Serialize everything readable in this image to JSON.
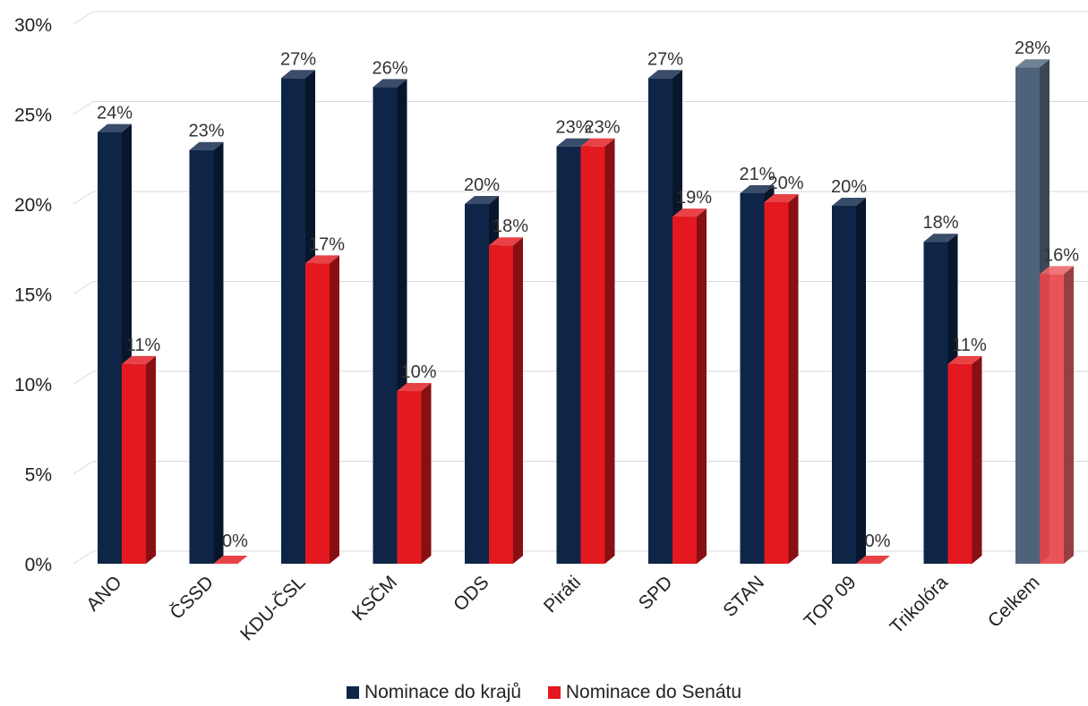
{
  "chart_data": {
    "type": "bar",
    "categories": [
      "ANO",
      "ČSSD",
      "KDU-ČSL",
      "KSČM",
      "ODS",
      "Piráti",
      "SPD",
      "STAN",
      "TOP 09",
      "Trikolóra",
      "Celkem"
    ],
    "series": [
      {
        "name": "Nominace do krajů",
        "color": "#0e2548",
        "values": [
          24,
          23,
          27,
          26.5,
          20,
          23.2,
          27,
          20.6,
          19.9,
          17.9,
          27.6
        ],
        "labels": [
          "24%",
          "23%",
          "27%",
          "26%",
          "20%",
          "23%",
          "27%",
          "21%",
          "20%",
          "18%",
          "28%"
        ]
      },
      {
        "name": "Nominace do Senátu",
        "color": "#e3191f",
        "values": [
          11.1,
          0,
          16.7,
          9.6,
          17.7,
          23.2,
          19.3,
          20.1,
          0,
          11.1,
          16.1
        ],
        "labels": [
          "11%",
          "0%",
          "17%",
          "10%",
          "18%",
          "23%",
          "19%",
          "20%",
          "0%",
          "11%",
          "16%"
        ]
      }
    ],
    "highlight_category": "Celkem",
    "highlight_colors": [
      "#3e566f",
      "#e8454a"
    ],
    "y_ticks": [
      "0%",
      "5%",
      "10%",
      "15%",
      "20%",
      "25%",
      "30%"
    ],
    "ylim": [
      0,
      30
    ],
    "grid": true,
    "legend_position": "bottom"
  }
}
